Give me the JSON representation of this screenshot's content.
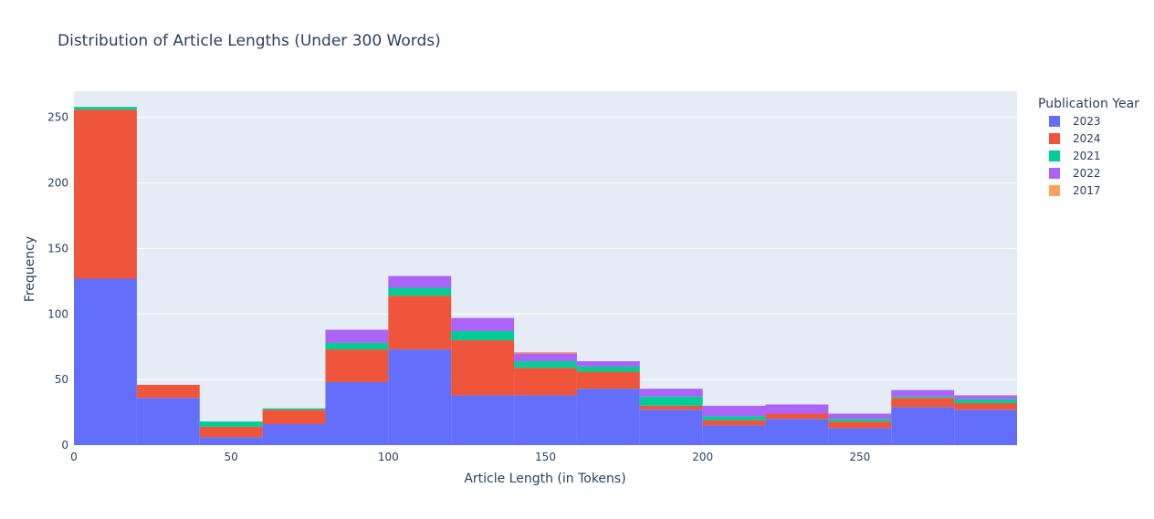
{
  "chart_data": {
    "type": "bar",
    "stacked": true,
    "title": "Distribution of Article Lengths (Under 300 Words)",
    "xlabel": "Article Length (in Tokens)",
    "ylabel": "Frequency",
    "xlim": [
      0,
      300
    ],
    "ylim": [
      0,
      270
    ],
    "bin_width": 20,
    "bin_starts": [
      0,
      20,
      40,
      60,
      80,
      100,
      120,
      140,
      160,
      180,
      200,
      220,
      240,
      260,
      280
    ],
    "xticks": [
      0,
      50,
      100,
      150,
      200,
      250
    ],
    "yticks": [
      0,
      50,
      100,
      150,
      200,
      250
    ],
    "grid": true,
    "legend_title": "Publication Year",
    "legend_position": "top-right",
    "series": [
      {
        "name": "2023",
        "color": "#636efa",
        "values": [
          127,
          36,
          6,
          16,
          48,
          73,
          38,
          38,
          43,
          27,
          15,
          20,
          13,
          29,
          27
        ]
      },
      {
        "name": "2024",
        "color": "#ef553b",
        "values": [
          129,
          10,
          8,
          11,
          25,
          41,
          42,
          21,
          13,
          3,
          4,
          4,
          5,
          7,
          5
        ]
      },
      {
        "name": "2021",
        "color": "#00cc96",
        "values": [
          2,
          0,
          4,
          1,
          5,
          6,
          7,
          5,
          4,
          7,
          3,
          0,
          2,
          1,
          3
        ]
      },
      {
        "name": "2022",
        "color": "#ab63fa",
        "values": [
          0,
          0,
          0,
          0,
          10,
          9,
          10,
          6,
          4,
          6,
          8,
          7,
          4,
          5,
          3
        ]
      },
      {
        "name": "2017",
        "color": "#ffa15a",
        "values": [
          0,
          0,
          0,
          0,
          0,
          0,
          0,
          1,
          0,
          0,
          0,
          0,
          0,
          0,
          0
        ]
      }
    ]
  }
}
